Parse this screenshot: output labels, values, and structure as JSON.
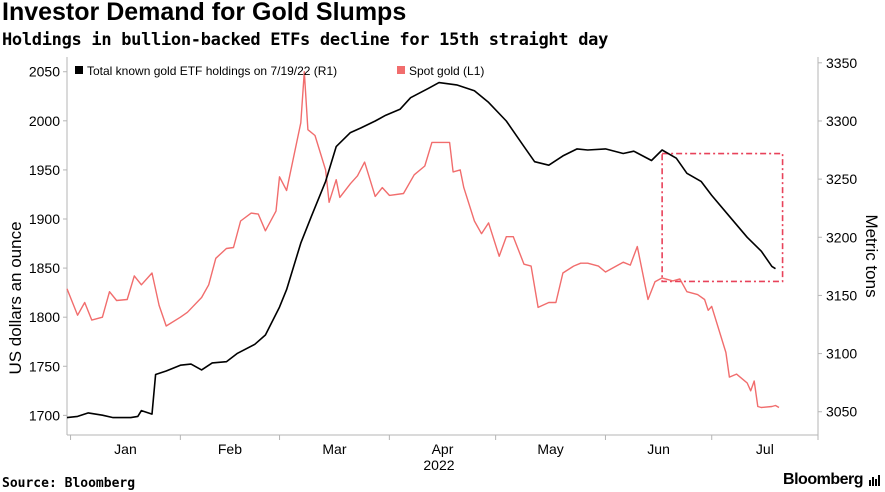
{
  "header": {
    "title": "Investor Demand for Gold Slumps",
    "subtitle": "Holdings in bullion-backed ETFs decline for 15th straight day"
  },
  "footer": {
    "source": "Source: Bloomberg",
    "logo_text": "Bloomberg"
  },
  "chart_data": {
    "type": "line",
    "title": "Investor Demand for Gold Slumps",
    "subtitle": "Holdings in bullion-backed ETFs decline for 15th straight day",
    "x_ticks": [
      "Jan",
      "Feb",
      "Mar",
      "Apr",
      "May",
      "Jun",
      "Jul"
    ],
    "x_year": "2022",
    "x_range": [
      "2021-12-31",
      "2022-07-31"
    ],
    "left_axis": {
      "label": "US dollars an ounce",
      "range": [
        1680,
        2065
      ],
      "ticks": [
        1700,
        1750,
        1800,
        1850,
        1900,
        1950,
        2000,
        2050
      ]
    },
    "right_axis": {
      "label": "Metric tons",
      "range": [
        3030,
        3355
      ],
      "ticks": [
        3050,
        3100,
        3150,
        3200,
        3250,
        3300,
        3350
      ]
    },
    "grid": false,
    "legend_position": "top",
    "colors": {
      "etf": "#000000",
      "spot": "#f16d6d",
      "highlight": "#e8425a"
    },
    "highlight_box": {
      "x_start": "2022-06-17",
      "x_end": "2022-07-21",
      "y_range_tons": [
        3162,
        3272
      ]
    },
    "series": [
      {
        "name": "Total known gold ETF holdings on 7/19/22 (R1)",
        "axis": "right",
        "points": [
          [
            "2021-12-31",
            3045
          ],
          [
            "2022-01-03",
            3046
          ],
          [
            "2022-01-06",
            3049
          ],
          [
            "2022-01-10",
            3047
          ],
          [
            "2022-01-13",
            3045
          ],
          [
            "2022-01-18",
            3045
          ],
          [
            "2022-01-20",
            3046
          ],
          [
            "2022-01-21",
            3051
          ],
          [
            "2022-01-24",
            3048
          ],
          [
            "2022-01-25",
            3082
          ],
          [
            "2022-01-28",
            3085
          ],
          [
            "2022-02-01",
            3090
          ],
          [
            "2022-02-04",
            3091
          ],
          [
            "2022-02-07",
            3086
          ],
          [
            "2022-02-10",
            3092
          ],
          [
            "2022-02-14",
            3093
          ],
          [
            "2022-02-17",
            3100
          ],
          [
            "2022-02-22",
            3108
          ],
          [
            "2022-02-25",
            3116
          ],
          [
            "2022-03-01",
            3140
          ],
          [
            "2022-03-03",
            3155
          ],
          [
            "2022-03-07",
            3195
          ],
          [
            "2022-03-10",
            3218
          ],
          [
            "2022-03-14",
            3248
          ],
          [
            "2022-03-17",
            3278
          ],
          [
            "2022-03-21",
            3290
          ],
          [
            "2022-03-24",
            3294
          ],
          [
            "2022-03-28",
            3300
          ],
          [
            "2022-03-31",
            3305
          ],
          [
            "2022-04-04",
            3310
          ],
          [
            "2022-04-07",
            3320
          ],
          [
            "2022-04-12",
            3328
          ],
          [
            "2022-04-15",
            3333
          ],
          [
            "2022-04-20",
            3331
          ],
          [
            "2022-04-25",
            3326
          ],
          [
            "2022-04-29",
            3316
          ],
          [
            "2022-05-04",
            3300
          ],
          [
            "2022-05-09",
            3278
          ],
          [
            "2022-05-12",
            3265
          ],
          [
            "2022-05-16",
            3262
          ],
          [
            "2022-05-20",
            3270
          ],
          [
            "2022-05-24",
            3276
          ],
          [
            "2022-05-27",
            3275
          ],
          [
            "2022-06-01",
            3276
          ],
          [
            "2022-06-06",
            3272
          ],
          [
            "2022-06-09",
            3274
          ],
          [
            "2022-06-14",
            3266
          ],
          [
            "2022-06-17",
            3275
          ],
          [
            "2022-06-21",
            3268
          ],
          [
            "2022-06-24",
            3255
          ],
          [
            "2022-06-28",
            3248
          ],
          [
            "2022-07-01",
            3236
          ],
          [
            "2022-07-06",
            3218
          ],
          [
            "2022-07-11",
            3200
          ],
          [
            "2022-07-15",
            3188
          ],
          [
            "2022-07-18",
            3175
          ],
          [
            "2022-07-19",
            3173
          ]
        ]
      },
      {
        "name": "Spot gold (L1)",
        "axis": "left",
        "points": [
          [
            "2021-12-31",
            1829
          ],
          [
            "2022-01-03",
            1802
          ],
          [
            "2022-01-05",
            1815
          ],
          [
            "2022-01-07",
            1797
          ],
          [
            "2022-01-10",
            1800
          ],
          [
            "2022-01-12",
            1826
          ],
          [
            "2022-01-14",
            1817
          ],
          [
            "2022-01-17",
            1818
          ],
          [
            "2022-01-19",
            1842
          ],
          [
            "2022-01-21",
            1833
          ],
          [
            "2022-01-24",
            1845
          ],
          [
            "2022-01-26",
            1812
          ],
          [
            "2022-01-28",
            1791
          ],
          [
            "2022-02-01",
            1800
          ],
          [
            "2022-02-03",
            1805
          ],
          [
            "2022-02-07",
            1820
          ],
          [
            "2022-02-09",
            1833
          ],
          [
            "2022-02-11",
            1860
          ],
          [
            "2022-02-14",
            1870
          ],
          [
            "2022-02-16",
            1871
          ],
          [
            "2022-02-18",
            1898
          ],
          [
            "2022-02-21",
            1906
          ],
          [
            "2022-02-23",
            1905
          ],
          [
            "2022-02-25",
            1888
          ],
          [
            "2022-02-28",
            1908
          ],
          [
            "2022-03-01",
            1943
          ],
          [
            "2022-03-03",
            1929
          ],
          [
            "2022-03-07",
            1998
          ],
          [
            "2022-03-08",
            2050
          ],
          [
            "2022-03-09",
            1991
          ],
          [
            "2022-03-11",
            1985
          ],
          [
            "2022-03-14",
            1950
          ],
          [
            "2022-03-15",
            1917
          ],
          [
            "2022-03-17",
            1940
          ],
          [
            "2022-03-18",
            1922
          ],
          [
            "2022-03-21",
            1936
          ],
          [
            "2022-03-23",
            1944
          ],
          [
            "2022-03-25",
            1958
          ],
          [
            "2022-03-28",
            1923
          ],
          [
            "2022-03-30",
            1932
          ],
          [
            "2022-04-01",
            1924
          ],
          [
            "2022-04-05",
            1926
          ],
          [
            "2022-04-08",
            1945
          ],
          [
            "2022-04-11",
            1954
          ],
          [
            "2022-04-13",
            1978
          ],
          [
            "2022-04-18",
            1978
          ],
          [
            "2022-04-19",
            1948
          ],
          [
            "2022-04-21",
            1950
          ],
          [
            "2022-04-22",
            1932
          ],
          [
            "2022-04-25",
            1898
          ],
          [
            "2022-04-27",
            1885
          ],
          [
            "2022-04-29",
            1896
          ],
          [
            "2022-05-02",
            1862
          ],
          [
            "2022-05-04",
            1882
          ],
          [
            "2022-05-06",
            1882
          ],
          [
            "2022-05-09",
            1854
          ],
          [
            "2022-05-11",
            1852
          ],
          [
            "2022-05-13",
            1810
          ],
          [
            "2022-05-16",
            1815
          ],
          [
            "2022-05-18",
            1815
          ],
          [
            "2022-05-20",
            1845
          ],
          [
            "2022-05-23",
            1852
          ],
          [
            "2022-05-25",
            1855
          ],
          [
            "2022-05-27",
            1855
          ],
          [
            "2022-05-30",
            1852
          ],
          [
            "2022-06-01",
            1846
          ],
          [
            "2022-06-03",
            1850
          ],
          [
            "2022-06-06",
            1856
          ],
          [
            "2022-06-08",
            1853
          ],
          [
            "2022-06-10",
            1872
          ],
          [
            "2022-06-13",
            1818
          ],
          [
            "2022-06-15",
            1836
          ],
          [
            "2022-06-17",
            1840
          ],
          [
            "2022-06-20",
            1837
          ],
          [
            "2022-06-22",
            1839
          ],
          [
            "2022-06-24",
            1826
          ],
          [
            "2022-06-27",
            1823
          ],
          [
            "2022-06-29",
            1818
          ],
          [
            "2022-06-30",
            1807
          ],
          [
            "2022-07-01",
            1811
          ],
          [
            "2022-07-05",
            1764
          ],
          [
            "2022-07-06",
            1739
          ],
          [
            "2022-07-08",
            1742
          ],
          [
            "2022-07-11",
            1733
          ],
          [
            "2022-07-12",
            1725
          ],
          [
            "2022-07-13",
            1735
          ],
          [
            "2022-07-14",
            1709
          ],
          [
            "2022-07-15",
            1708
          ],
          [
            "2022-07-18",
            1709
          ],
          [
            "2022-07-19",
            1710
          ],
          [
            "2022-07-20",
            1708
          ]
        ]
      }
    ]
  }
}
